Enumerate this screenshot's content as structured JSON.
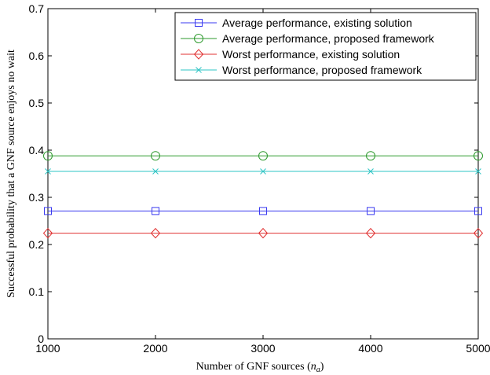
{
  "chart_data": {
    "type": "line",
    "xlabel": "Number of GNF sources (",
    "xlabel_var": "n",
    "xlabel_sub": "a",
    "xlabel_close": ")",
    "ylabel": "Successful probability that a GNF source enjoys no wait",
    "xlim": [
      1000,
      5000
    ],
    "ylim": [
      0,
      0.7
    ],
    "xticks": [
      1000,
      2000,
      3000,
      4000,
      5000
    ],
    "xtick_labels": [
      "1000",
      "2000",
      "3000",
      "4000",
      "5000"
    ],
    "yticks": [
      0,
      0.1,
      0.2,
      0.3,
      0.4,
      0.5,
      0.6,
      0.7
    ],
    "ytick_labels": [
      "0",
      "0.1",
      "0.2",
      "0.3",
      "0.4",
      "0.5",
      "0.6",
      "0.7"
    ],
    "grid": false,
    "legend_position": "top-right",
    "x": [
      1000,
      2000,
      3000,
      4000,
      5000
    ],
    "series": [
      {
        "name": "Average performance, existing solution",
        "values": [
          0.271,
          0.271,
          0.271,
          0.271,
          0.271
        ],
        "color": "#3a3af0",
        "marker": "square"
      },
      {
        "name": "Average performance, proposed framework",
        "values": [
          0.388,
          0.388,
          0.388,
          0.388,
          0.388
        ],
        "color": "#2e9a2e",
        "marker": "circle"
      },
      {
        "name": "Worst performance, existing solution",
        "values": [
          0.224,
          0.224,
          0.224,
          0.224,
          0.224
        ],
        "color": "#e03030",
        "marker": "diamond"
      },
      {
        "name": "Worst performance, proposed framework",
        "values": [
          0.355,
          0.355,
          0.355,
          0.355,
          0.355
        ],
        "color": "#2ec4c4",
        "marker": "x"
      }
    ]
  }
}
